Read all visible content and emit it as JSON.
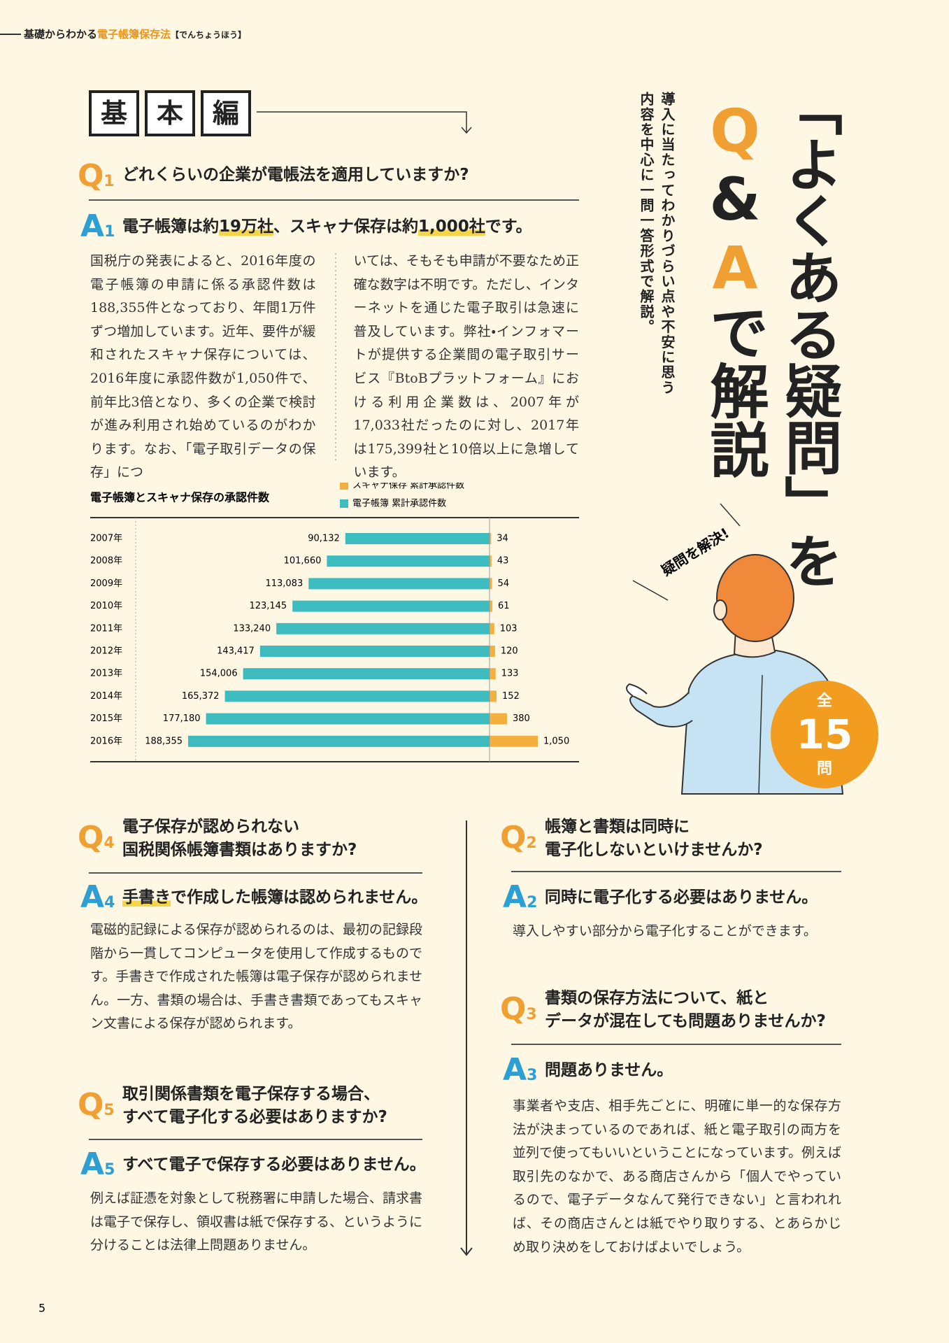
{
  "header": {
    "prefix": "基礎からわかる",
    "highlight": "電子帳簿保存法",
    "reading": "【でんちょうほう】"
  },
  "page_number": "5",
  "section_label": [
    "基",
    "本",
    "編"
  ],
  "feature": {
    "title_line1": "「よくある疑問」を",
    "title_line2_parts": [
      "Q",
      "&",
      "A",
      "で解説"
    ],
    "subtitle_lines": [
      "導入に当たってわかりづらい点や不安に思う",
      "内容を中心に一問一答形式で解説。"
    ],
    "speech": "疑問を解決!",
    "badge": {
      "top": "全",
      "number": "15",
      "bottom": "問"
    }
  },
  "qa": [
    {
      "q": "Q",
      "q_num": "1",
      "question": [
        "どれくらいの企業が電帳法を適用していますか?"
      ],
      "a": "A",
      "a_num": "1",
      "answer": [
        {
          "text": "電子帳簿は約"
        },
        {
          "text": "19万社",
          "highlight": true
        },
        {
          "text": "、スキャナ保存は約"
        },
        {
          "text": "1,000社",
          "highlight": true
        },
        {
          "text": "です。"
        }
      ],
      "body": [
        "国税庁の発表によると、2016年度の電子帳簿の申請に係る承認件数は188,355件となっており、年間1万件ずつ増加しています。近年、要件が緩和されたスキャナ保存については、2016年度に承認件数が1,050件で、前年比3倍となり、多くの企業で検討が進み利用され始めているのがわかります。なお、「電子取引データの保存」につ",
        "いては、そもそも申請が不要なため正確な数字は不明です。ただし、インターネットを通じた電子取引は急速に普及しています。弊社・インフォマートが提供する企業間の電子取引サービス『BtoBプラットフォーム』における利用企業数は、2007年が17,033社だったのに対し、2017年は175,399社と10倍以上に急増しています。"
      ]
    },
    {
      "q": "Q",
      "q_num": "2",
      "question": [
        "帳簿と書類は同時に",
        "電子化しないといけませんか?"
      ],
      "a": "A",
      "a_num": "2",
      "answer": [
        {
          "text": "同時に電子化する必要はありません。"
        }
      ],
      "body": [
        "導入しやすい部分から電子化することができます。"
      ]
    },
    {
      "q": "Q",
      "q_num": "3",
      "question": [
        "書類の保存方法について、紙と",
        "データが混在しても問題ありませんか?"
      ],
      "a": "A",
      "a_num": "3",
      "answer": [
        {
          "text": "問題ありません。"
        }
      ],
      "body": [
        "事業者や支店、相手先ごとに、明確に単一的な保存方法が決まっているのであれば、紙と電子取引の両方を並列で使ってもいいということになっています。例えば取引先のなかで、ある商店さんから「個人でやっているので、電子データなんて発行できない」と言われれば、その商店さんとは紙でやり取りする、とあらかじめ取り決めをしておけばよいでしょう。"
      ]
    },
    {
      "q": "Q",
      "q_num": "4",
      "question": [
        "電子保存が認められない",
        "国税関係帳簿書類はありますか?"
      ],
      "a": "A",
      "a_num": "4",
      "answer": [
        {
          "text": "手書き",
          "highlight": true
        },
        {
          "text": "で作成した帳簿は認められません。"
        }
      ],
      "body": [
        "電磁的記録による保存が認められるのは、最初の記録段階から一貫してコンピュータを使用して作成するものです。手書きで作成された帳簿は電子保存が認められません。一方、書類の場合は、手書き書類であってもスキャン文書による保存が認められます。"
      ]
    },
    {
      "q": "Q",
      "q_num": "5",
      "question": [
        "取引関係書類を電子保存する場合、",
        "すべて電子化する必要はありますか?"
      ],
      "a": "A",
      "a_num": "5",
      "answer": [
        {
          "text": "すべて電子で保存する必要はありません。"
        }
      ],
      "body": [
        "例えば証憑を対象として税務署に申請した場合、請求書は電子で保存し、領収書は紙で保存する、というように分けることは法律上問題ありません。"
      ]
    }
  ],
  "chart_data": {
    "type": "bar",
    "orientation": "horizontal",
    "title": "電子帳簿とスキャナ保存の承認件数",
    "categories": [
      "2007年",
      "2008年",
      "2009年",
      "2010年",
      "2011年",
      "2012年",
      "2013年",
      "2014年",
      "2015年",
      "2016年"
    ],
    "series": [
      {
        "name": "スキャナ保存 累計承認件数",
        "color": "#f4b03f",
        "values": [
          34,
          43,
          54,
          61,
          103,
          120,
          133,
          152,
          380,
          1050
        ],
        "value_labels": [
          "34",
          "43",
          "54",
          "61",
          "103",
          "120",
          "133",
          "152",
          "380",
          "1,050"
        ]
      },
      {
        "name": "電子帳簿 累計承認件数",
        "color": "#3dbcc0",
        "values": [
          90132,
          101660,
          113083,
          123145,
          133240,
          143417,
          154006,
          165372,
          177180,
          188355
        ],
        "value_labels": [
          "90,132",
          "101,660",
          "113,083",
          "123,145",
          "133,240",
          "143,417",
          "154,006",
          "165,372",
          "177,180",
          "188,355"
        ]
      }
    ]
  }
}
